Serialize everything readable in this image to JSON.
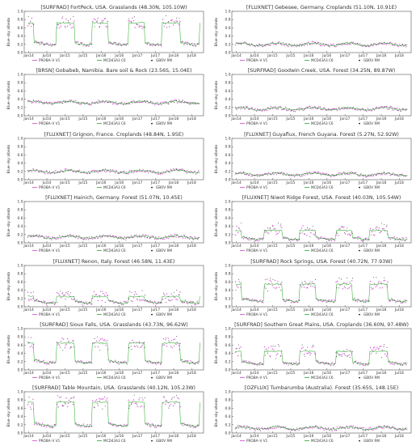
{
  "colors": {
    "proba": "#cc44cc",
    "modis": "#22aa22",
    "gbov": "#111111",
    "frame": "#555555",
    "text": "#333333"
  },
  "figure": {
    "ylabel": "Blue–sky albedo",
    "y_ticks": [
      "0.0",
      "0.2",
      "0.4",
      "0.6",
      "0.8",
      "1.0"
    ],
    "x_ticks": [
      "Jan14",
      "Jul14",
      "Jan15",
      "Jul15",
      "Jan16",
      "Jul16",
      "Jan17",
      "Jul17",
      "Jan18",
      "Jul18"
    ],
    "legend": [
      "PROBA–V V1",
      "MCD43A3 C6",
      "GBOV RM"
    ]
  },
  "chart_data": [
    {
      "type": "scatter",
      "title": "[SURFRAD] FortPeck, USA. Grasslands (48.30N, 105.10W)",
      "ylim": [
        0,
        1
      ],
      "base": 0.22,
      "snow_level": 0.72,
      "snow_windows": [
        [
          0.0,
          0.05
        ],
        [
          0.18,
          0.28
        ],
        [
          0.38,
          0.47
        ],
        [
          0.58,
          0.67
        ],
        [
          0.77,
          0.87
        ],
        [
          0.98,
          1.0
        ]
      ]
    },
    {
      "type": "scatter",
      "title": "[FLUXNET] Gebesee, Germany. Croplands (51.10N, 10.91E)",
      "ylim": [
        0,
        1
      ],
      "base": 0.2,
      "snow_level": 0.0,
      "snow_windows": []
    },
    {
      "type": "scatter",
      "title": "[BRSN] Gobabeb, Namibia. Bare soil & Rock (23.56S, 15.04E)",
      "ylim": [
        0,
        1
      ],
      "base": 0.32,
      "snow_level": 0.0,
      "snow_windows": []
    },
    {
      "type": "scatter",
      "title": "[SURFRAD] Goodwin Creek, USA. Forest (34.25N, 89.87W)",
      "ylim": [
        0,
        1
      ],
      "base": 0.17,
      "snow_level": 0.0,
      "snow_windows": []
    },
    {
      "type": "scatter",
      "title": "[FLUXNET] Grignon, France. Croplands (48.84N, 1.95E)",
      "ylim": [
        0,
        1
      ],
      "base": 0.2,
      "snow_level": 0.0,
      "snow_windows": []
    },
    {
      "type": "scatter",
      "title": "[FLUXNET] Guyaflux, French Guyana. Forest (5.27N, 52.92W)",
      "ylim": [
        0,
        1
      ],
      "base": 0.13,
      "snow_level": 0.0,
      "snow_windows": []
    },
    {
      "type": "scatter",
      "title": "[FLUXNET] Hainich, Germany. Forest (51.07N, 10.45E)",
      "ylim": [
        0,
        1
      ],
      "base": 0.14,
      "snow_level": 0.0,
      "snow_windows": []
    },
    {
      "type": "scatter",
      "title": "[FLUXNET] Niwot Ridge Forest, USA. Forest (40.03N, 105.54W)",
      "ylim": [
        0,
        1
      ],
      "base": 0.11,
      "snow_level": 0.3,
      "snow_windows": [
        [
          0.0,
          0.05
        ],
        [
          0.18,
          0.28
        ],
        [
          0.38,
          0.47
        ],
        [
          0.58,
          0.67
        ],
        [
          0.77,
          0.87
        ]
      ]
    },
    {
      "type": "scatter",
      "title": "[FLUXNET] Renon, Italy. Forest (46.58N, 11.43E)",
      "ylim": [
        0,
        1
      ],
      "base": 0.12,
      "snow_level": 0.25,
      "snow_windows": [
        [
          0.0,
          0.05
        ],
        [
          0.18,
          0.28
        ],
        [
          0.38,
          0.47
        ],
        [
          0.58,
          0.67
        ],
        [
          0.77,
          0.87
        ],
        [
          0.98,
          1.0
        ]
      ]
    },
    {
      "type": "scatter",
      "title": "[SURFRAD] Rock Springs, USA. Forest (40.72N, 77.93W)",
      "ylim": [
        0,
        1
      ],
      "base": 0.16,
      "snow_level": 0.55,
      "snow_windows": [
        [
          0.0,
          0.05
        ],
        [
          0.18,
          0.28
        ],
        [
          0.38,
          0.47
        ],
        [
          0.58,
          0.67
        ],
        [
          0.77,
          0.87
        ]
      ]
    },
    {
      "type": "scatter",
      "title": "[SURFRAD] Sioux Falls, USA. Grasslands (43.73N, 96.62W)",
      "ylim": [
        0,
        1
      ],
      "base": 0.2,
      "snow_level": 0.65,
      "snow_windows": [
        [
          0.0,
          0.05
        ],
        [
          0.18,
          0.28
        ],
        [
          0.38,
          0.47
        ],
        [
          0.58,
          0.67
        ],
        [
          0.77,
          0.87
        ],
        [
          0.98,
          1.0
        ]
      ]
    },
    {
      "type": "scatter",
      "title": "[SURFRAD] Southern Great Plains, USA. Croplands (36.60N, 97.48W)",
      "ylim": [
        0,
        1
      ],
      "base": 0.17,
      "snow_level": 0.45,
      "snow_windows": [
        [
          0.0,
          0.05
        ],
        [
          0.18,
          0.28
        ],
        [
          0.38,
          0.47
        ],
        [
          0.58,
          0.67
        ],
        [
          0.77,
          0.87
        ]
      ]
    },
    {
      "type": "scatter",
      "title": "[SURFRAD] Table Mountain, USA. Grasslands (40.12N, 105.23W)",
      "ylim": [
        0,
        1
      ],
      "base": 0.2,
      "snow_level": 0.75,
      "snow_windows": [
        [
          0.0,
          0.05
        ],
        [
          0.18,
          0.28
        ],
        [
          0.38,
          0.47
        ],
        [
          0.58,
          0.67
        ],
        [
          0.77,
          0.87
        ],
        [
          0.98,
          1.0
        ]
      ]
    },
    {
      "type": "scatter",
      "title": "[OZFLUX] Tumbarumba (Australia). Forest (35.65S, 148.15E)",
      "ylim": [
        0,
        1
      ],
      "base": 0.12,
      "snow_level": 0.0,
      "snow_windows": []
    }
  ]
}
